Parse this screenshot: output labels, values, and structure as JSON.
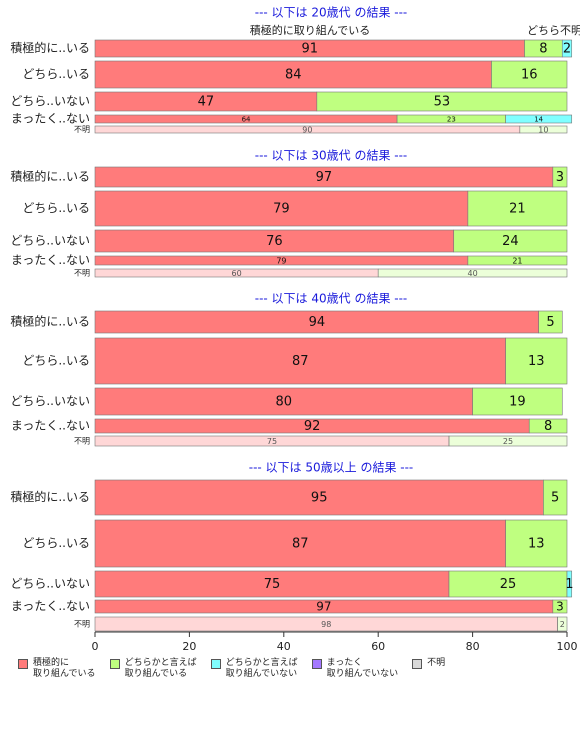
{
  "chart_data": [
    {
      "type": "bar",
      "title": "--- 以下は 20歳代 の結果 ---",
      "annotations": [
        "積極的に取り組んでいる",
        "どちら不明"
      ],
      "categories": [
        "積極的に..いる",
        "どちら..いる",
        "どちら..いない",
        "まったく..ない",
        "不明"
      ],
      "xlim": [
        0,
        100
      ],
      "series": [
        {
          "values": [
            91,
            84,
            47,
            64,
            90
          ]
        },
        {
          "values": [
            8,
            16,
            53,
            23,
            10
          ]
        },
        {
          "values": [
            2,
            null,
            null,
            14,
            null
          ]
        },
        {
          "values": [
            null,
            null,
            null,
            null,
            null
          ]
        },
        {
          "values": [
            null,
            null,
            null,
            null,
            null
          ]
        }
      ]
    },
    {
      "type": "bar",
      "title": "--- 以下は 30歳代 の結果 ---",
      "categories": [
        "積極的に..いる",
        "どちら..いる",
        "どちら..いない",
        "まったく..ない",
        "不明"
      ],
      "xlim": [
        0,
        100
      ],
      "series": [
        {
          "values": [
            97,
            79,
            76,
            79,
            60
          ]
        },
        {
          "values": [
            3,
            21,
            24,
            21,
            40
          ]
        },
        {
          "values": [
            null,
            null,
            null,
            null,
            null
          ]
        },
        {
          "values": [
            null,
            null,
            null,
            null,
            null
          ]
        },
        {
          "values": [
            null,
            null,
            null,
            null,
            null
          ]
        }
      ]
    },
    {
      "type": "bar",
      "title": "--- 以下は 40歳代 の結果 ---",
      "categories": [
        "積極的に..いる",
        "どちら..いる",
        "どちら..いない",
        "まったく..ない",
        "不明"
      ],
      "xlim": [
        0,
        100
      ],
      "series": [
        {
          "values": [
            94,
            87,
            80,
            92,
            75
          ]
        },
        {
          "values": [
            5,
            13,
            19,
            8,
            25
          ]
        },
        {
          "values": [
            null,
            null,
            null,
            null,
            null
          ]
        },
        {
          "values": [
            null,
            null,
            null,
            null,
            null
          ]
        },
        {
          "values": [
            null,
            null,
            null,
            null,
            null
          ]
        }
      ]
    },
    {
      "type": "bar",
      "title": "--- 以下は 50歳以上 の結果 ---",
      "categories": [
        "積極的に..いる",
        "どちら..いる",
        "どちら..いない",
        "まったく..ない",
        "不明"
      ],
      "xlim": [
        0,
        100
      ],
      "xticks": [
        0,
        20,
        40,
        60,
        80,
        100
      ],
      "series": [
        {
          "values": [
            95,
            87,
            75,
            97,
            98
          ]
        },
        {
          "values": [
            5,
            13,
            25,
            3,
            2
          ]
        },
        {
          "values": [
            null,
            null,
            1,
            null,
            null
          ]
        },
        {
          "values": [
            null,
            null,
            null,
            null,
            null
          ]
        },
        {
          "values": [
            null,
            null,
            null,
            null,
            null
          ]
        }
      ]
    }
  ],
  "legend": [
    {
      "name": "積極的に\n取り組んでいる",
      "color": "#ff7b7b"
    },
    {
      "name": "どちらかと言えば\n取り組んでいる",
      "color": "#bfff80"
    },
    {
      "name": "どちらかと言えば\n取り組んでいない",
      "color": "#80ffff"
    },
    {
      "name": "まったく\n取り組んでいない",
      "color": "#a478ff"
    },
    {
      "name": "不明",
      "color": "#d9d9d9"
    }
  ]
}
